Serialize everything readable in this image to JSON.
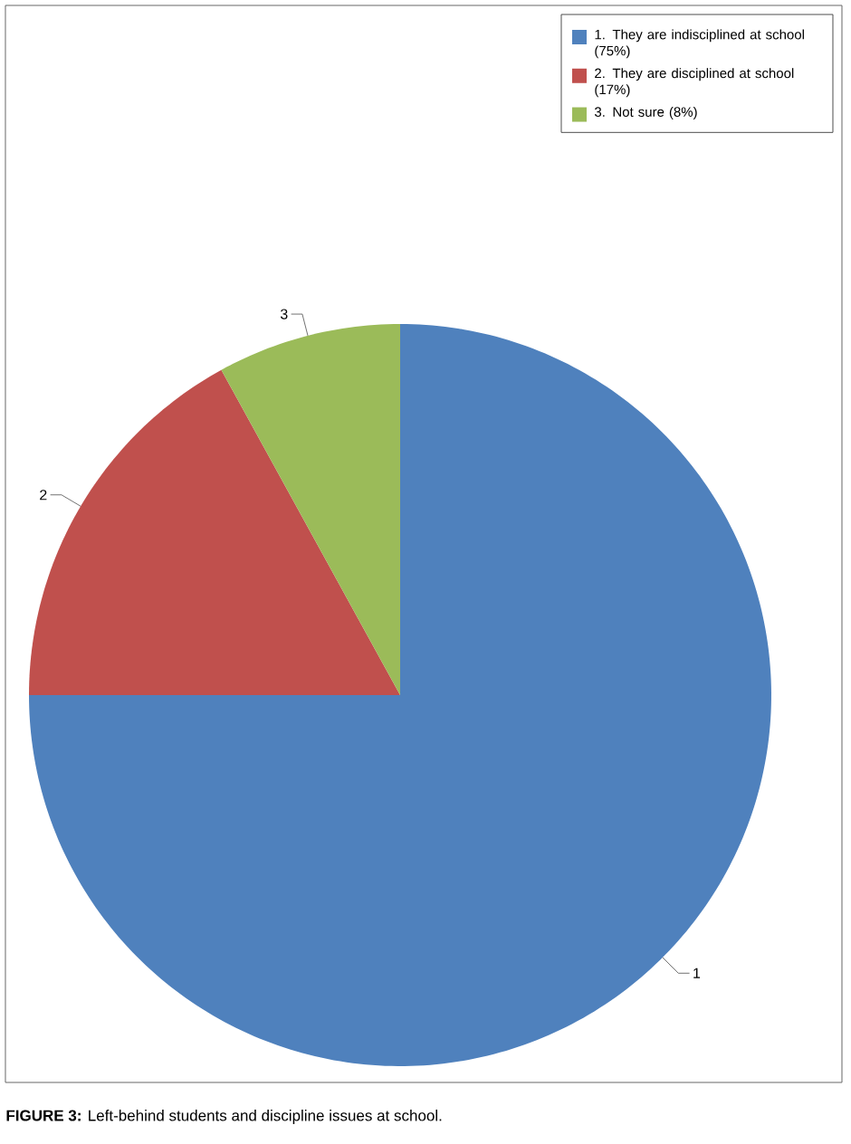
{
  "chart_data": {
    "type": "pie",
    "categories": [
      "1. They are indisciplined at school (75%)",
      "2. They are disciplined at school (17%)",
      "3. Not sure (8%)"
    ],
    "values": [
      75,
      17,
      8
    ],
    "colors": [
      "#4f81bd",
      "#c0504d",
      "#9bbb59"
    ],
    "legend": "top right",
    "annotations": [
      "1",
      "2",
      "3",
      "**FIGURE 3:** Left-behind students and discipline issues at school."
    ]
  }
}
